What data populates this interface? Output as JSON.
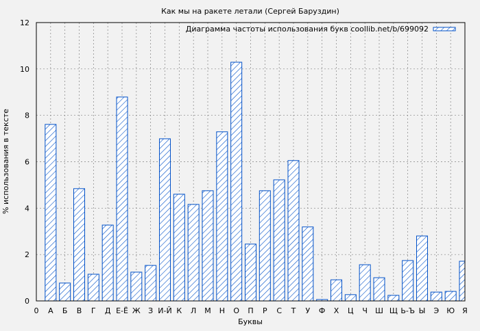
{
  "chart_data": {
    "type": "bar",
    "title": "Как мы на ракете летали (Сергей Баруздин)",
    "xlabel": "Буквы",
    "ylabel": "% использования в тексте",
    "x_origin_label": "0",
    "categories": [
      "А",
      "Б",
      "В",
      "Г",
      "Д",
      "Е-Ё",
      "Ж",
      "З",
      "И-Й",
      "К",
      "Л",
      "М",
      "Н",
      "О",
      "П",
      "Р",
      "С",
      "Т",
      "У",
      "Ф",
      "Х",
      "Ц",
      "Ч",
      "Ш",
      "Щ",
      "Ь-Ъ",
      "Ы",
      "Э",
      "Ю",
      "Я"
    ],
    "values": [
      7.61,
      0.77,
      4.84,
      1.15,
      3.27,
      8.79,
      1.24,
      1.53,
      6.99,
      4.6,
      4.16,
      4.75,
      7.29,
      10.29,
      2.45,
      4.75,
      5.22,
      6.05,
      3.19,
      0.06,
      0.91,
      0.27,
      1.56,
      1.0,
      0.24,
      1.74,
      2.8,
      0.38,
      0.41,
      1.71
    ],
    "ylim": [
      0,
      12
    ],
    "yticks": [
      0,
      2,
      4,
      6,
      8,
      10,
      12
    ],
    "grid": true,
    "legend": {
      "label": "Диаграмма частоты использования букв coollib.net/b/699092",
      "placement": "top-right"
    },
    "colors": {
      "bar": "#0050c8",
      "background": "#f2f2f2",
      "grid": "#808080"
    }
  }
}
